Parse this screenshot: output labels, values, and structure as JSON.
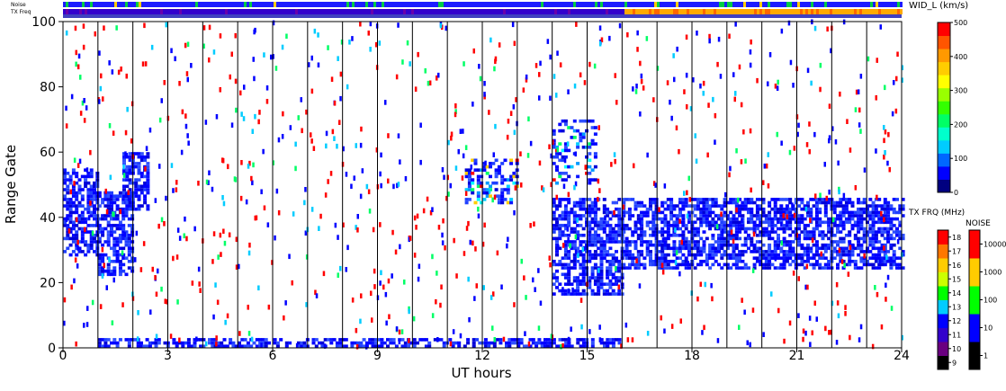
{
  "chart_data": {
    "type": "heatmap",
    "xlabel": "UT hours",
    "ylabel": "Range Gate",
    "xlim": [
      0,
      24
    ],
    "ylim": [
      0,
      100
    ],
    "x_ticks": [
      0,
      3,
      6,
      9,
      12,
      15,
      18,
      21,
      24
    ],
    "y_ticks": [
      0,
      20,
      40,
      60,
      80,
      100
    ],
    "grid": "vertical lines every 1 UT hour",
    "panel_labels": {
      "noise": "Noise",
      "tx_freq": "TX Freq"
    },
    "colorbars": [
      {
        "name": "width",
        "title": "WID_L (km/s)",
        "ticks": [
          0,
          100,
          200,
          300,
          400,
          500
        ],
        "range": [
          0,
          500
        ],
        "colors": [
          "#000080",
          "#0000ff",
          "#0066ff",
          "#00ccff",
          "#00ffcc",
          "#00ff66",
          "#33ff00",
          "#99ff00",
          "#ffff00",
          "#ffcc00",
          "#ff9900",
          "#ff5500",
          "#ff0000"
        ]
      },
      {
        "name": "tx_freq",
        "title": "TX FRQ (MHz)",
        "ticks": [
          "9",
          "10",
          "11",
          "12",
          "13",
          "14",
          "15",
          "16",
          "17",
          "18"
        ],
        "colors": [
          "#000000",
          "#6a0080",
          "#3300cc",
          "#0000ff",
          "#00ccff",
          "#00ff00",
          "#ccff00",
          "#ffcc00",
          "#ff7700",
          "#ff0000"
        ]
      },
      {
        "name": "noise",
        "title": "NOISE",
        "ticks": [
          "1",
          "10",
          "100",
          "1000",
          "10000"
        ],
        "colors": [
          "#000000",
          "#0000ff",
          "#00ff00",
          "#ffcc00",
          "#ff0000"
        ]
      }
    ],
    "tx_freq_strip": {
      "segments": [
        {
          "from_hour": 0,
          "to_hour": 16,
          "dominant": "11 MHz"
        },
        {
          "from_hour": 16,
          "to_hour": 24,
          "dominant": "15-16 MHz"
        }
      ]
    },
    "noise_strip": {
      "dominant": "10"
    },
    "scatter_regions": [
      {
        "name": "early band",
        "x": [
          0,
          1
        ],
        "y": [
          28,
          55
        ],
        "value": "low width"
      },
      {
        "name": "patch 1-2h",
        "x": [
          1,
          2
        ],
        "y": [
          22,
          48
        ],
        "value": "low width"
      },
      {
        "name": "patch 1.7-2.3h",
        "x": [
          1.7,
          2.4
        ],
        "y": [
          42,
          60
        ],
        "value": "low width"
      },
      {
        "name": "afternoon blob",
        "x": [
          14,
          16
        ],
        "y": [
          16,
          46
        ],
        "value": "low width"
      },
      {
        "name": "late band",
        "x": [
          16,
          24
        ],
        "y": [
          24,
          46
        ],
        "value": "low width"
      },
      {
        "name": "near-range echoes",
        "x": [
          1,
          16
        ],
        "y": [
          0,
          3
        ],
        "value": "low width"
      },
      {
        "name": "streak 11.5-13h",
        "x": [
          11.5,
          13
        ],
        "y": [
          44,
          58
        ],
        "value": "mixed"
      },
      {
        "name": "streak 14-15h",
        "x": [
          14,
          15.2
        ],
        "y": [
          50,
          70
        ],
        "value": "mixed"
      }
    ]
  }
}
